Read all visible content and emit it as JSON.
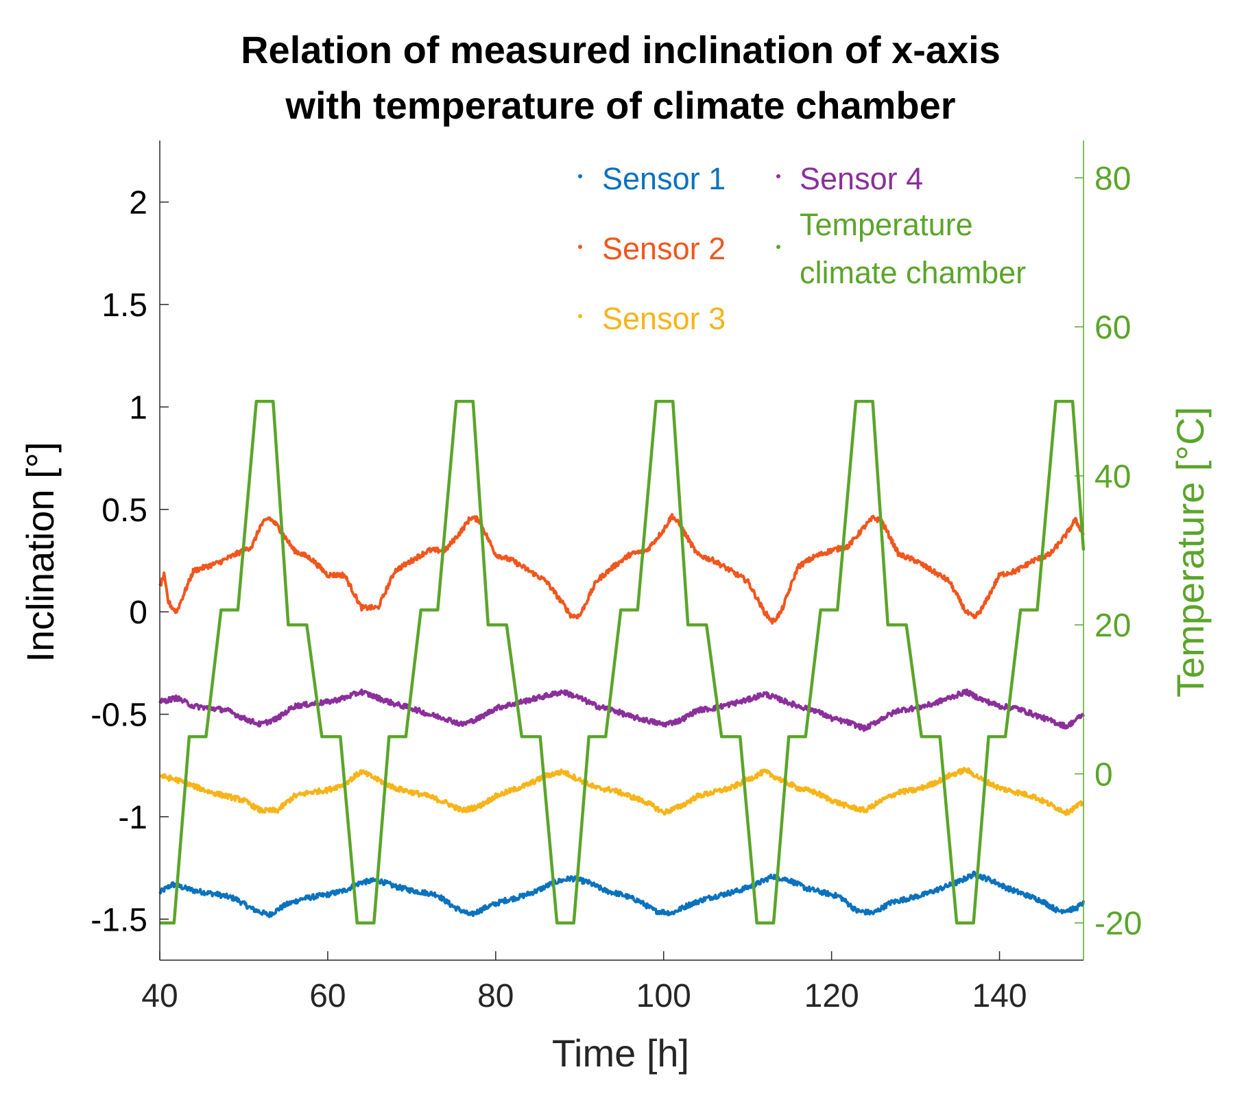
{
  "chart_data": {
    "type": "line",
    "title": [
      "Relation of measured inclination of x-axis",
      "with temperature of climate chamber"
    ],
    "xlabel": "Time [h]",
    "ylabel": "Inclination [°]",
    "y2label": "Temperature [°C]",
    "xlim": [
      40,
      150
    ],
    "ylim": [
      -1.7,
      2.3
    ],
    "y2lim": [
      -25,
      85
    ],
    "xticks": [
      40,
      60,
      80,
      100,
      120,
      140
    ],
    "xtick_labels": [
      "40",
      "60",
      "80",
      "100",
      "120",
      "140"
    ],
    "yticks": [
      -1.5,
      -1,
      -0.5,
      0,
      0.5,
      1,
      1.5,
      2
    ],
    "ytick_labels": [
      "-1.5",
      "-1",
      "-0.5",
      "0",
      "0.5",
      "1",
      "1.5",
      "2"
    ],
    "y2ticks": [
      -20,
      0,
      20,
      40,
      60,
      80
    ],
    "y2tick_labels": [
      "-20",
      "0",
      "20",
      "40",
      "60",
      "80"
    ],
    "grid": false,
    "legend_position": "top-right",
    "temperature_color": "#5ba52a",
    "cycle_period_h": 23.8,
    "series": [
      {
        "name": "Sensor 1",
        "color": "#0a72bd",
        "axis": "left",
        "x": [
          40,
          41.5,
          44,
          47,
          49,
          51,
          53,
          55,
          57,
          60,
          62,
          64,
          66,
          68,
          70,
          73,
          75,
          77,
          79,
          81,
          83,
          85,
          87,
          89,
          91,
          93,
          95,
          97,
          99,
          101,
          103,
          105,
          107,
          109,
          111,
          113,
          115,
          117,
          119,
          121,
          123,
          125,
          127,
          129,
          131,
          133,
          135,
          137,
          139,
          141,
          143,
          145,
          147,
          149,
          150
        ],
        "values": [
          -1.37,
          -1.33,
          -1.36,
          -1.38,
          -1.4,
          -1.45,
          -1.48,
          -1.43,
          -1.4,
          -1.38,
          -1.36,
          -1.32,
          -1.31,
          -1.34,
          -1.36,
          -1.38,
          -1.44,
          -1.48,
          -1.44,
          -1.41,
          -1.39,
          -1.36,
          -1.32,
          -1.3,
          -1.32,
          -1.36,
          -1.38,
          -1.41,
          -1.46,
          -1.47,
          -1.43,
          -1.4,
          -1.38,
          -1.36,
          -1.33,
          -1.29,
          -1.31,
          -1.35,
          -1.37,
          -1.39,
          -1.46,
          -1.47,
          -1.42,
          -1.4,
          -1.38,
          -1.35,
          -1.32,
          -1.28,
          -1.31,
          -1.35,
          -1.38,
          -1.41,
          -1.46,
          -1.45,
          -1.42
        ]
      },
      {
        "name": "Sensor 2",
        "color": "#f0561d",
        "axis": "left",
        "x": [
          40,
          40.5,
          41,
          41.5,
          42,
          44,
          47,
          49,
          51,
          52,
          53,
          54,
          56,
          58,
          60,
          62,
          63,
          64,
          66,
          68,
          70,
          72,
          74,
          76,
          77,
          78,
          80,
          82,
          84,
          86,
          88,
          89,
          90,
          92,
          94,
          96,
          98,
          100,
          101,
          102,
          104,
          106,
          108,
          110,
          112,
          113,
          114,
          116,
          118,
          120,
          122,
          124,
          125,
          126,
          128,
          130,
          132,
          134,
          136,
          137,
          138,
          140,
          142,
          144,
          146,
          148,
          149,
          150
        ],
        "values": [
          0.12,
          0.18,
          0.05,
          0.02,
          0.0,
          0.2,
          0.24,
          0.28,
          0.32,
          0.42,
          0.46,
          0.42,
          0.3,
          0.26,
          0.18,
          0.18,
          0.1,
          0.02,
          0.02,
          0.2,
          0.25,
          0.3,
          0.3,
          0.4,
          0.46,
          0.45,
          0.28,
          0.25,
          0.2,
          0.15,
          0.04,
          -0.02,
          -0.02,
          0.15,
          0.22,
          0.28,
          0.3,
          0.4,
          0.47,
          0.42,
          0.28,
          0.25,
          0.2,
          0.15,
          0.0,
          -0.05,
          0.0,
          0.22,
          0.27,
          0.3,
          0.32,
          0.42,
          0.46,
          0.44,
          0.28,
          0.25,
          0.2,
          0.15,
          0.0,
          -0.03,
          0.02,
          0.18,
          0.2,
          0.25,
          0.28,
          0.38,
          0.45,
          0.38
        ]
      },
      {
        "name": "Sensor 3",
        "color": "#f7b418",
        "axis": "left",
        "x": [
          40,
          42,
          44,
          46,
          48,
          50,
          52,
          54,
          56,
          58,
          60,
          62,
          64,
          66,
          68,
          70,
          72,
          74,
          76,
          78,
          80,
          82,
          84,
          86,
          88,
          90,
          92,
          94,
          96,
          98,
          100,
          102,
          104,
          106,
          108,
          110,
          112,
          114,
          116,
          118,
          120,
          122,
          124,
          126,
          128,
          130,
          132,
          134,
          136,
          138,
          140,
          142,
          144,
          146,
          148,
          150
        ],
        "values": [
          -0.8,
          -0.82,
          -0.85,
          -0.88,
          -0.9,
          -0.92,
          -0.97,
          -0.97,
          -0.9,
          -0.88,
          -0.87,
          -0.84,
          -0.78,
          -0.82,
          -0.86,
          -0.88,
          -0.9,
          -0.93,
          -0.97,
          -0.95,
          -0.9,
          -0.87,
          -0.84,
          -0.8,
          -0.78,
          -0.82,
          -0.86,
          -0.87,
          -0.9,
          -0.93,
          -0.98,
          -0.95,
          -0.9,
          -0.88,
          -0.86,
          -0.82,
          -0.78,
          -0.82,
          -0.86,
          -0.88,
          -0.92,
          -0.95,
          -0.97,
          -0.92,
          -0.88,
          -0.87,
          -0.84,
          -0.8,
          -0.77,
          -0.82,
          -0.86,
          -0.88,
          -0.9,
          -0.94,
          -0.98,
          -0.93
        ]
      },
      {
        "name": "Sensor 4",
        "color": "#8b2f9b",
        "axis": "left",
        "x": [
          40,
          42,
          44,
          46,
          48,
          50,
          52,
          54,
          56,
          58,
          60,
          62,
          64,
          66,
          68,
          70,
          72,
          74,
          76,
          78,
          80,
          82,
          84,
          86,
          88,
          90,
          92,
          94,
          96,
          98,
          100,
          102,
          104,
          106,
          108,
          110,
          112,
          114,
          116,
          118,
          120,
          122,
          124,
          126,
          128,
          130,
          132,
          134,
          136,
          138,
          140,
          142,
          144,
          146,
          148,
          150
        ],
        "values": [
          -0.44,
          -0.42,
          -0.46,
          -0.47,
          -0.48,
          -0.52,
          -0.55,
          -0.52,
          -0.46,
          -0.45,
          -0.44,
          -0.42,
          -0.39,
          -0.42,
          -0.45,
          -0.47,
          -0.5,
          -0.52,
          -0.55,
          -0.52,
          -0.47,
          -0.45,
          -0.43,
          -0.41,
          -0.39,
          -0.42,
          -0.46,
          -0.48,
          -0.51,
          -0.53,
          -0.55,
          -0.53,
          -0.48,
          -0.47,
          -0.45,
          -0.43,
          -0.4,
          -0.43,
          -0.46,
          -0.48,
          -0.52,
          -0.54,
          -0.57,
          -0.52,
          -0.48,
          -0.47,
          -0.45,
          -0.42,
          -0.39,
          -0.43,
          -0.46,
          -0.47,
          -0.5,
          -0.53,
          -0.56,
          -0.5
        ]
      },
      {
        "name": "Temperature climate chamber",
        "label_lines": [
          "Temperature",
          "climate chamber"
        ],
        "color": "#5ba52a",
        "axis": "right",
        "x": [
          40,
          41.7,
          43.5,
          45.5,
          47.3,
          49.3,
          51.5,
          52.3,
          53.5,
          55.3,
          57.5,
          59.3,
          61.5,
          63.5,
          65.5,
          67.3,
          69.3,
          71.1,
          73.1,
          75.3,
          76.1,
          77.3,
          79.1,
          81.3,
          83.1,
          85.3,
          87.3,
          89.3,
          91.1,
          93.1,
          94.9,
          96.9,
          99.1,
          99.9,
          101.1,
          102.9,
          105.1,
          106.9,
          109.1,
          111.1,
          113.1,
          114.9,
          116.9,
          118.7,
          120.7,
          122.9,
          123.7,
          124.9,
          126.7,
          128.9,
          130.7,
          132.9,
          134.9,
          136.9,
          138.7,
          140.7,
          142.5,
          144.5,
          146.7,
          147.5,
          148.7,
          150
        ],
        "values": [
          -20,
          -20,
          5,
          5,
          22,
          22,
          50,
          50,
          50,
          20,
          20,
          5,
          5,
          -20,
          -20,
          5,
          5,
          22,
          22,
          50,
          50,
          50,
          20,
          20,
          5,
          5,
          -20,
          -20,
          5,
          5,
          22,
          22,
          50,
          50,
          50,
          20,
          20,
          5,
          5,
          -20,
          -20,
          5,
          5,
          22,
          22,
          50,
          50,
          50,
          20,
          20,
          5,
          5,
          -20,
          -20,
          5,
          5,
          22,
          22,
          50,
          50,
          50,
          30
        ]
      }
    ]
  }
}
